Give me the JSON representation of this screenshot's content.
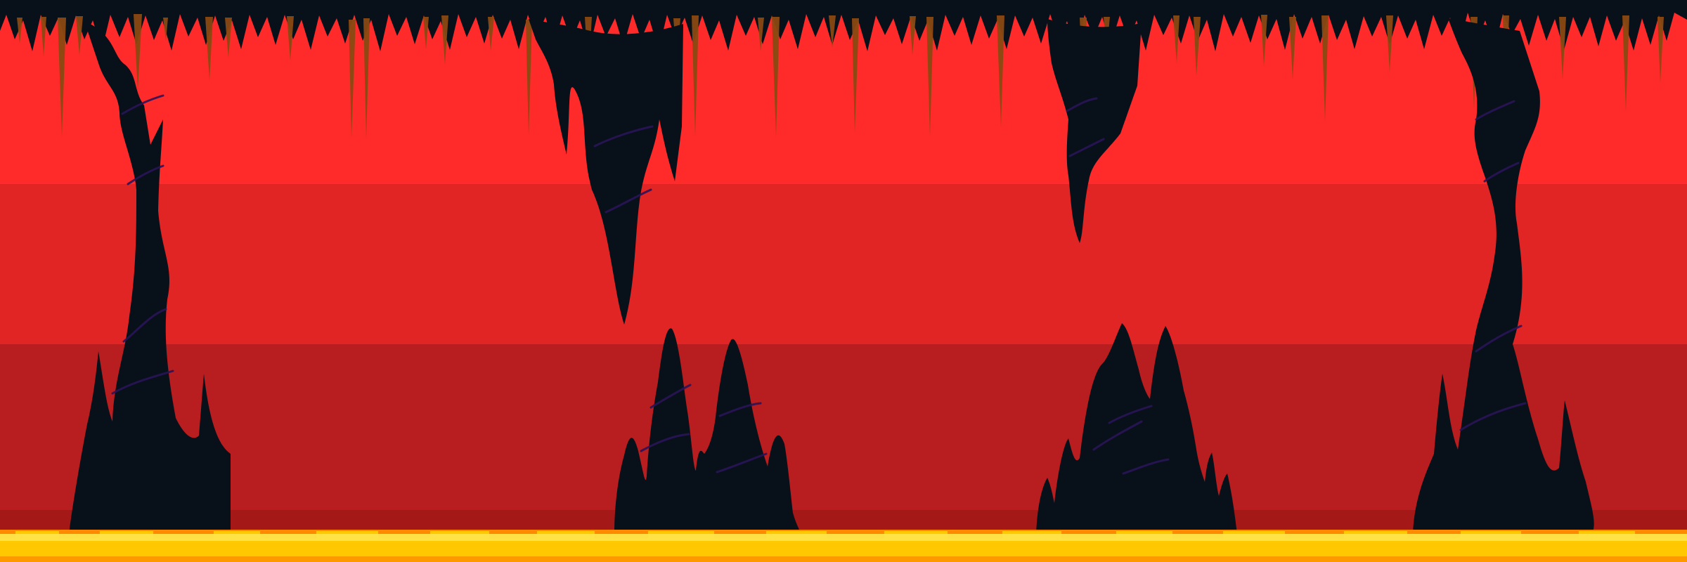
{
  "scene": {
    "kind": "side-scrolling lava cave background",
    "colors": {
      "ceiling": "#08111a",
      "rock": "#08111a",
      "rock_vein": "#2a1458",
      "drip": "#8a4a12",
      "band_1": "#ff2a2a",
      "band_2": "#e12424",
      "band_3": "#b81d1f",
      "band_4": "#a51818",
      "lava_orange": "#ff8a00",
      "lava_yellow": "#ffc800",
      "lava_light": "#ffe44a"
    }
  }
}
